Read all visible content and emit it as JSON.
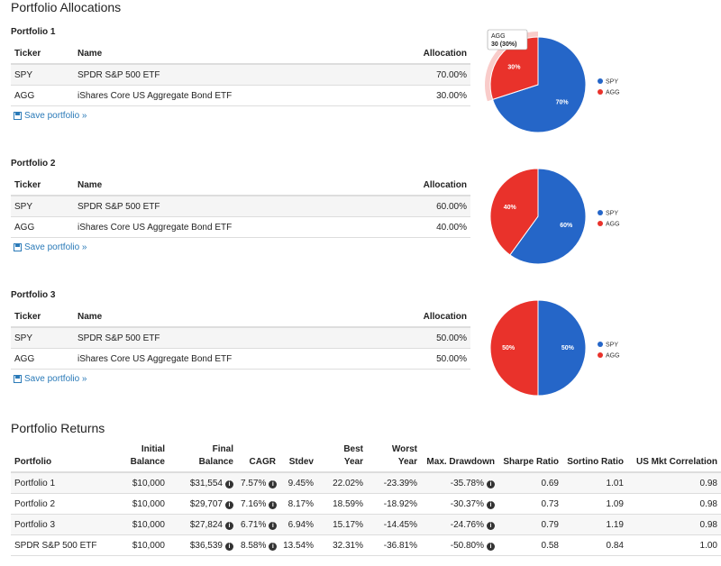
{
  "allocations": {
    "title": "Portfolio Allocations",
    "columns": [
      "Ticker",
      "Name",
      "Allocation"
    ],
    "save_link": "Save portfolio »",
    "portfolios": [
      {
        "name": "Portfolio 1",
        "rows": [
          [
            "SPY",
            "SPDR S&P 500 ETF",
            "70.00%"
          ],
          [
            "AGG",
            "iShares Core US Aggregate Bond ETF",
            "30.00%"
          ]
        ],
        "pie": {
          "type": "pie",
          "values": [
            70,
            30
          ],
          "value_labels": [
            "70%",
            "30%"
          ],
          "colors": [
            "#2566c8",
            "#e9322b"
          ],
          "tooltip": "30 (30%)"
        }
      },
      {
        "name": "Portfolio 2",
        "rows": [
          [
            "SPY",
            "SPDR S&P 500 ETF",
            "60.00%"
          ],
          [
            "AGG",
            "iShares Core US Aggregate Bond ETF",
            "40.00%"
          ]
        ],
        "pie": {
          "type": "pie",
          "values": [
            60,
            40
          ],
          "value_labels": [
            "60%",
            "40%"
          ],
          "colors": [
            "#2566c8",
            "#e9322b"
          ]
        }
      },
      {
        "name": "Portfolio 3",
        "rows": [
          [
            "SPY",
            "SPDR S&P 500 ETF",
            "50.00%"
          ],
          [
            "AGG",
            "iShares Core US Aggregate Bond ETF",
            "50.00%"
          ]
        ],
        "pie": {
          "type": "pie",
          "values": [
            50,
            50
          ],
          "value_labels": [
            "50%",
            "50%"
          ],
          "colors": [
            "#2566c8",
            "#e9322b"
          ]
        }
      }
    ]
  },
  "returns": {
    "title": "Portfolio Returns",
    "header": [
      [
        "Portfolio"
      ],
      [
        "Initial",
        "Balance"
      ],
      [
        "Final",
        "Balance"
      ],
      [
        "CAGR"
      ],
      [
        "Stdev"
      ],
      [
        "Best",
        "Year"
      ],
      [
        "Worst",
        "Year"
      ],
      [
        "Max. Drawdown"
      ],
      [
        "Sharpe Ratio"
      ],
      [
        "Sortino Ratio"
      ],
      [
        "US Mkt Correlation"
      ]
    ],
    "rows": [
      [
        "Portfolio 1",
        "$10,000",
        "$31,554",
        "7.57%",
        "9.45%",
        "22.02%",
        "-23.39%",
        "-35.78%",
        "0.69",
        "1.01",
        "0.98"
      ],
      [
        "Portfolio 2",
        "$10,000",
        "$29,707",
        "7.16%",
        "8.17%",
        "18.59%",
        "-18.92%",
        "-30.37%",
        "0.73",
        "1.09",
        "0.98"
      ],
      [
        "Portfolio 3",
        "$10,000",
        "$27,824",
        "6.71%",
        "6.94%",
        "15.17%",
        "-14.45%",
        "-24.76%",
        "0.79",
        "1.19",
        "0.98"
      ],
      [
        "SPDR S&P 500 ETF",
        "$10,000",
        "$36,539",
        "8.58%",
        "13.54%",
        "32.31%",
        "-36.81%",
        "-50.80%",
        "0.58",
        "0.84",
        "1.00"
      ]
    ]
  }
}
